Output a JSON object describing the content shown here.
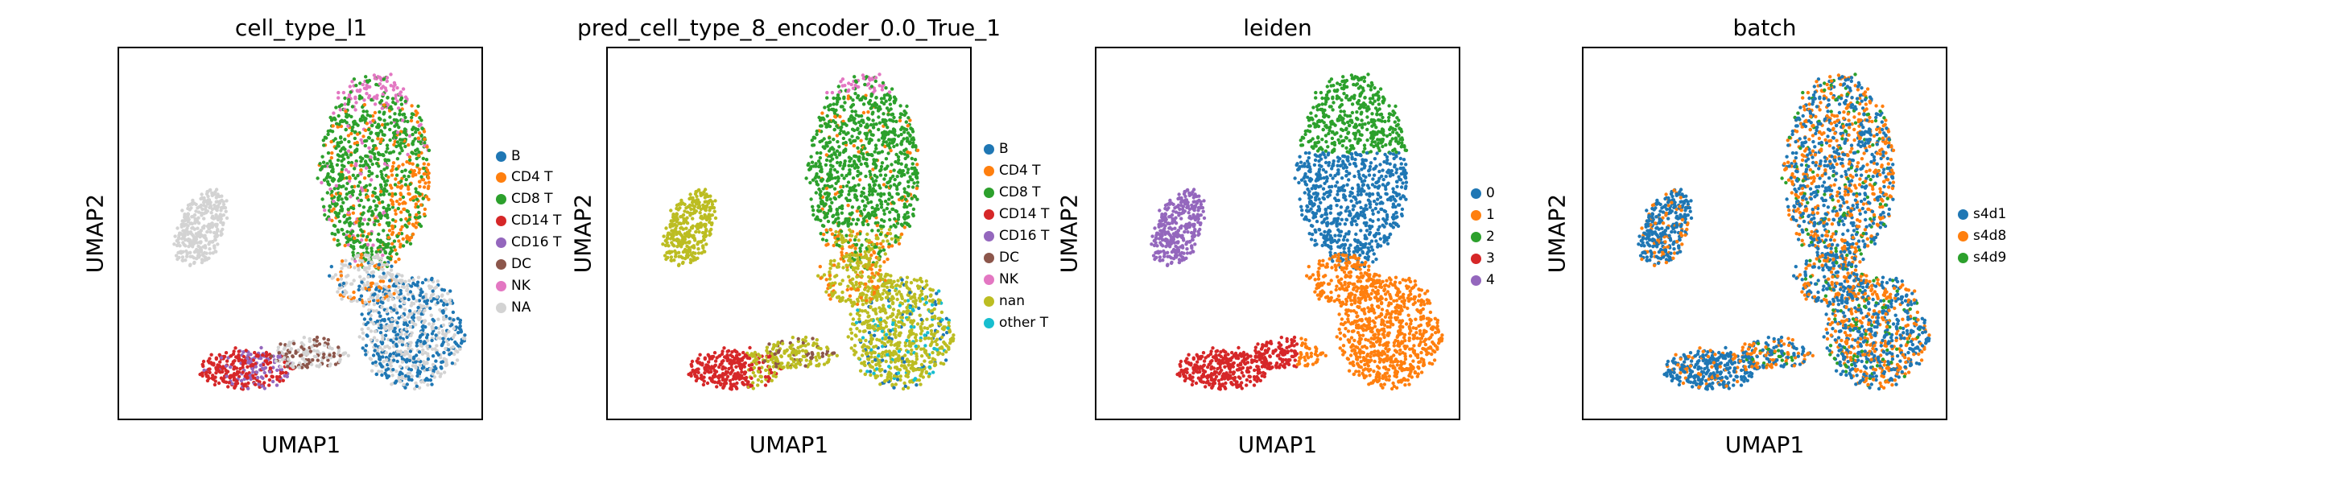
{
  "panels": [
    {
      "title": "cell_type_l1",
      "xlabel": "UMAP1",
      "ylabel": "UMAP2",
      "legend": [
        {
          "label": "B",
          "color": "#1f77b4"
        },
        {
          "label": "CD4 T",
          "color": "#ff7f0e"
        },
        {
          "label": "CD8 T",
          "color": "#2ca02c"
        },
        {
          "label": "CD14 T",
          "color": "#d62728"
        },
        {
          "label": "CD16 T",
          "color": "#9467bd"
        },
        {
          "label": "DC",
          "color": "#8c564b"
        },
        {
          "label": "NK",
          "color": "#e377c2"
        },
        {
          "label": "NA",
          "color": "#d3d3d3"
        }
      ]
    },
    {
      "title": "pred_cell_type_8_encoder_0.0_True_1",
      "xlabel": "UMAP1",
      "ylabel": "UMAP2",
      "legend": [
        {
          "label": "B",
          "color": "#1f77b4"
        },
        {
          "label": "CD4 T",
          "color": "#ff7f0e"
        },
        {
          "label": "CD8 T",
          "color": "#2ca02c"
        },
        {
          "label": "CD14 T",
          "color": "#d62728"
        },
        {
          "label": "CD16 T",
          "color": "#9467bd"
        },
        {
          "label": "DC",
          "color": "#8c564b"
        },
        {
          "label": "NK",
          "color": "#e377c2"
        },
        {
          "label": "nan",
          "color": "#bcbd22"
        },
        {
          "label": "other T",
          "color": "#17becf"
        }
      ]
    },
    {
      "title": "leiden",
      "xlabel": "UMAP1",
      "ylabel": "UMAP2",
      "legend": [
        {
          "label": "0",
          "color": "#1f77b4"
        },
        {
          "label": "1",
          "color": "#ff7f0e"
        },
        {
          "label": "2",
          "color": "#2ca02c"
        },
        {
          "label": "3",
          "color": "#d62728"
        },
        {
          "label": "4",
          "color": "#9467bd"
        }
      ]
    },
    {
      "title": "batch",
      "xlabel": "UMAP1",
      "ylabel": "UMAP2",
      "legend": [
        {
          "label": "s4d1",
          "color": "#1f77b4"
        },
        {
          "label": "s4d8",
          "color": "#ff7f0e"
        },
        {
          "label": "s4d9",
          "color": "#2ca02c"
        }
      ]
    }
  ],
  "chart_data": [
    {
      "type": "scatter",
      "title": "cell_type_l1",
      "xlabel": "UMAP1",
      "ylabel": "UMAP2",
      "ticks": "none",
      "series": [
        {
          "name": "B",
          "color": "#1f77b4",
          "region": "bottom-right lobe (partial)"
        },
        {
          "name": "CD4 T",
          "color": "#ff7f0e",
          "region": "upper lobe, right side"
        },
        {
          "name": "CD8 T",
          "color": "#2ca02c",
          "region": "upper lobe"
        },
        {
          "name": "CD14 T",
          "color": "#d62728",
          "region": "bottom-left tail"
        },
        {
          "name": "CD16 T",
          "color": "#9467bd",
          "region": "bottom-left tail tip"
        },
        {
          "name": "DC",
          "color": "#8c564b",
          "region": "bridge between tail and lower lobe"
        },
        {
          "name": "NK",
          "color": "#e377c2",
          "region": "top edge of upper lobe"
        },
        {
          "name": "NA",
          "color": "#d3d3d3",
          "region": "left island and lower lobe"
        }
      ]
    },
    {
      "type": "scatter",
      "title": "pred_cell_type_8_encoder_0.0_True_1",
      "xlabel": "UMAP1",
      "ylabel": "UMAP2",
      "ticks": "none",
      "series": [
        {
          "name": "B",
          "color": "#1f77b4"
        },
        {
          "name": "CD4 T",
          "color": "#ff7f0e"
        },
        {
          "name": "CD8 T",
          "color": "#2ca02c"
        },
        {
          "name": "CD14 T",
          "color": "#d62728"
        },
        {
          "name": "CD16 T",
          "color": "#9467bd"
        },
        {
          "name": "DC",
          "color": "#8c564b"
        },
        {
          "name": "NK",
          "color": "#e377c2"
        },
        {
          "name": "nan",
          "color": "#bcbd22"
        },
        {
          "name": "other T",
          "color": "#17becf"
        }
      ]
    },
    {
      "type": "scatter",
      "title": "leiden",
      "xlabel": "UMAP1",
      "ylabel": "UMAP2",
      "ticks": "none",
      "series": [
        {
          "name": "0",
          "color": "#1f77b4"
        },
        {
          "name": "1",
          "color": "#ff7f0e"
        },
        {
          "name": "2",
          "color": "#2ca02c"
        },
        {
          "name": "3",
          "color": "#d62728"
        },
        {
          "name": "4",
          "color": "#9467bd"
        }
      ]
    },
    {
      "type": "scatter",
      "title": "batch",
      "xlabel": "UMAP1",
      "ylabel": "UMAP2",
      "ticks": "none",
      "series": [
        {
          "name": "s4d1",
          "color": "#1f77b4"
        },
        {
          "name": "s4d8",
          "color": "#ff7f0e"
        },
        {
          "name": "s4d9",
          "color": "#2ca02c"
        }
      ]
    }
  ]
}
